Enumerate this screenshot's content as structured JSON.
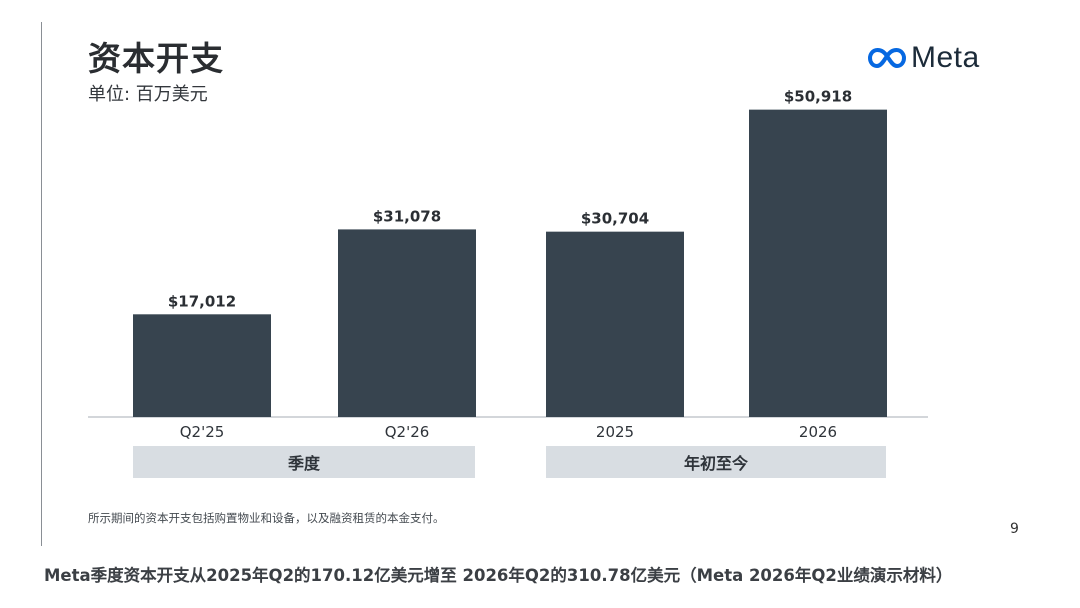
{
  "slide": {
    "title": "资本开支",
    "subtitle": "单位: 百万美元",
    "logo_icon": "meta-infinity-logo-icon",
    "logo_text": "Meta",
    "brand_color": "#0668e1",
    "groups": [
      "季度",
      "年初至今"
    ],
    "footnote": "所示期间的资本开支包括购置物业和设备，以及融资租赁的本金支付。",
    "page_number": "9"
  },
  "caption": "Meta季度资本开支从2025年Q2的170.12亿美元增至 2026年Q2的310.78亿美元（Meta 2026年Q2业绩演示材料）",
  "chart_data": {
    "type": "bar",
    "title": "资本开支",
    "subtitle": "单位: 百万美元",
    "categories": [
      "Q2'25",
      "Q2'26",
      "2025",
      "2026"
    ],
    "values": [
      17012,
      31078,
      30704,
      50918
    ],
    "data_labels": [
      "$17,012",
      "$31,078",
      "$30,704",
      "$50,918"
    ],
    "xlabel": "",
    "ylabel": "",
    "ylim": [
      0,
      55000
    ],
    "grid": false,
    "legend": "none",
    "bar_color": "#37444f",
    "axis_color": "#b9bec3"
  }
}
